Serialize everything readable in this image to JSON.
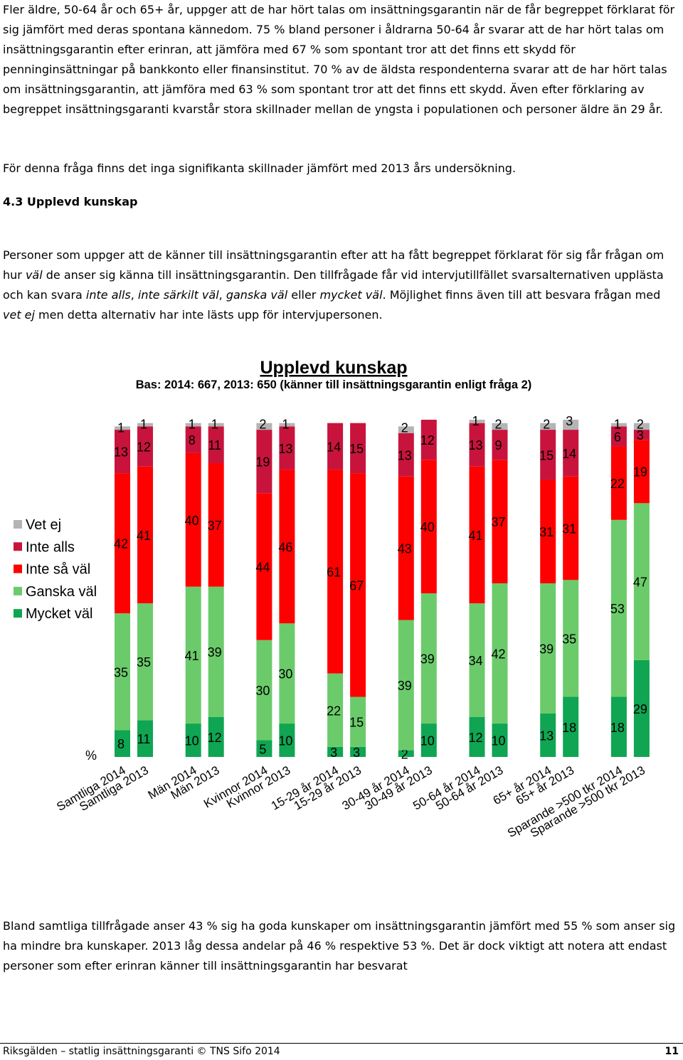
{
  "paragraph_1": "Fler äldre, 50-64 år och 65+ år, uppger att de har hört talas om insättningsgarantin när de får begreppet förklarat för sig jämfört med deras spontana kännedom. 75 % bland personer i åldrarna 50-64 år svarar att de har hört talas om insättningsgarantin efter erinran, att jämföra med 67 % som spontant tror att det finns ett skydd för penninginsättningar på bankkonto eller finansinstitut. 70 % av de äldsta respondenterna svarar att de har hört talas om insättningsgarantin, att jämföra med 63 % som spontant tror att det finns ett skydd. Även efter förklaring av begreppet insättningsgaranti kvarstår stora skillnader mellan de yngsta i populationen och personer äldre än 29 år.",
  "paragraph_2": "För denna fråga finns det inga signifikanta skillnader jämfört med 2013 års undersökning.",
  "heading": "4.3 Upplevd kunskap",
  "paragraph_3": [
    "Personer som uppger att de känner till insättningsgarantin efter att ha fått begreppet förklarat för sig får frågan om hur ",
    "väl",
    " de anser sig känna till insättningsgarantin. Den tillfrågade får vid intervjutillfället svarsalternativen upplästa och kan svara ",
    "inte alls",
    ", ",
    "inte särkilt väl",
    ", ",
    "ganska väl",
    " eller ",
    "mycket väl",
    ". Möjlighet finns även till att besvara frågan med ",
    "vet ej",
    " men detta alternativ har inte lästs upp för intervjupersonen."
  ],
  "chart_data": {
    "type": "stacked_bar",
    "title": "Upplevd kunskap",
    "subtitle": "Bas: 2014: 667, 2013: 650 (känner till insättningsgarantin enligt fråga 2)",
    "y_label": "%",
    "categories": [
      "Samtliga 2014",
      "Samtliga 2013",
      "Män 2014",
      "Män 2013",
      "Kvinnor 2014",
      "Kvinnor 2013",
      "15-29 år 2014",
      "15-29 år 2013",
      "30-49 år 2014",
      "30-49 år 2013",
      "50-64 år 2014",
      "50-64 år 2013",
      "65+ år 2014",
      "65+ år 2013",
      "Sparande >500 tkr 2014",
      "Sparande >500 tkr 2013"
    ],
    "series": [
      {
        "name": "Mycket väl",
        "color": "#0fa552",
        "values": [
          8,
          11,
          10,
          12,
          5,
          10,
          3,
          3,
          2,
          10,
          12,
          10,
          13,
          18,
          18,
          29
        ]
      },
      {
        "name": "Ganska väl",
        "color": "#6bcb6b",
        "values": [
          35,
          35,
          41,
          39,
          30,
          30,
          22,
          15,
          39,
          39,
          34,
          42,
          39,
          35,
          53,
          47
        ]
      },
      {
        "name": "Inte så väl",
        "color": "#ff0000",
        "values": [
          42,
          41,
          40,
          37,
          44,
          46,
          61,
          67,
          43,
          40,
          41,
          37,
          31,
          31,
          22,
          19
        ]
      },
      {
        "name": "Inte alls",
        "color": "#c8143c",
        "values": [
          13,
          12,
          8,
          11,
          19,
          13,
          14,
          15,
          13,
          12,
          13,
          9,
          15,
          14,
          6,
          3
        ]
      },
      {
        "name": "Vet ej",
        "color": "#b4b4b4",
        "values": [
          1,
          1,
          1,
          1,
          2,
          1,
          null,
          null,
          2,
          null,
          1,
          2,
          2,
          3,
          1,
          2
        ]
      }
    ]
  },
  "paragraph_4": "Bland samtliga tillfrågade anser 43 % sig ha goda kunskaper om insättningsgarantin jämfört med 55 % som anser sig ha mindre bra kunskaper. 2013 låg dessa andelar på 46 % respektive 53 %. Det är dock viktigt att notera att endast personer som efter erinran känner till insättningsgarantin har besvarat",
  "footer": {
    "text": "Riksgälden – statlig insättningsgaranti © TNS Sifo 2014",
    "page": "11"
  }
}
